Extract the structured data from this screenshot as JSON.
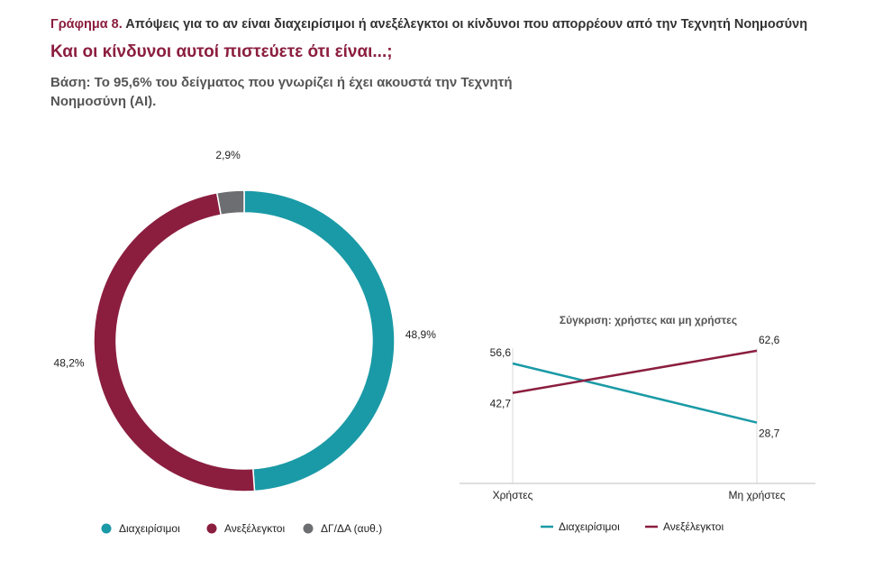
{
  "header": {
    "figure_label": "Γράφημα 8.",
    "figure_title": "Απόψεις για το αν είναι διαχειρίσιμοι ή ανεξέλεγκτοι οι κίνδυνοι που απορρέουν από την Τεχνητή Νοημοσύνη",
    "subtitle": "Και οι κίνδυνοι αυτοί πιστεύετε ότι είναι...;",
    "base": "Βάση: Το 95,6% του δείγματος που γνωρίζει ή έχει ακουστά την Τεχνητή Νοημοσύνη (AI)."
  },
  "colors": {
    "teal": "#1a9aa6",
    "maroon": "#8b1e3f",
    "gray": "#6d6e71"
  },
  "chart_data": [
    {
      "type": "pie",
      "donut": true,
      "categories": [
        "Διαχειρίσιμοι",
        "Ανεξέλεγκτοι",
        "ΔΓ/ΔΑ (αυθ.)"
      ],
      "values": [
        48.9,
        48.2,
        2.9
      ],
      "value_labels": [
        "48,9%",
        "48,2%",
        "2,9%"
      ],
      "legend": "bottom"
    },
    {
      "type": "line",
      "title": "Σύγκριση: χρήστες και μη χρήστες",
      "categories": [
        "Χρήστες",
        "Μη χρήστες"
      ],
      "series": [
        {
          "name": "Διαχειρίσιμοι",
          "values": [
            56.6,
            28.7
          ],
          "labels": [
            "56,6",
            "28,7"
          ]
        },
        {
          "name": "Ανεξέλεγκτοι",
          "values": [
            42.7,
            62.6
          ],
          "labels": [
            "42,7",
            "62,6"
          ]
        }
      ],
      "ylim": [
        0,
        80
      ],
      "legend": "bottom"
    }
  ]
}
